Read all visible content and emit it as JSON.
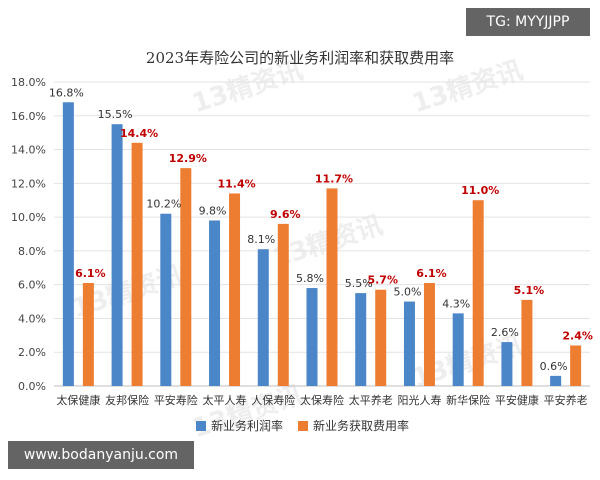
{
  "watermarks": {
    "tg": "TG: MYYJJPP",
    "site": "www.bodanyanju.com",
    "logo": "13精资讯"
  },
  "chart_data": {
    "type": "bar",
    "title": "2023年寿险公司的新业务利润率和获取费用率",
    "categories": [
      "太保健康",
      "友邦保险",
      "平安寿险",
      "太平人寿",
      "人保寿险",
      "太保寿险",
      "太平养老",
      "阳光人寿",
      "新华保险",
      "平安健康",
      "平安养老"
    ],
    "series": [
      {
        "name": "新业务利润率",
        "values": [
          16.8,
          15.5,
          10.2,
          9.8,
          8.1,
          5.8,
          5.5,
          5.0,
          4.3,
          2.6,
          0.6
        ],
        "labels": [
          "16.8%",
          "15.5%",
          "10.2%",
          "9.8%",
          "8.1%",
          "5.8%",
          "5.5%",
          "5.0%",
          "4.3%",
          "2.6%",
          "0.6%"
        ],
        "color": "#4a86c8",
        "label_color": "#333333"
      },
      {
        "name": "新业务获取费用率",
        "values": [
          6.1,
          14.4,
          12.9,
          11.4,
          9.6,
          11.7,
          5.7,
          6.1,
          11.0,
          5.1,
          2.4
        ],
        "labels": [
          "6.1%",
          "14.4%",
          "12.9%",
          "11.4%",
          "9.6%",
          "11.7%",
          "5.7%",
          "6.1%",
          "11.0%",
          "5.1%",
          "2.4%"
        ],
        "color": "#ed7d31",
        "label_color": "#c00000"
      }
    ],
    "ylim": [
      0,
      18
    ],
    "yticks": [
      "0.0%",
      "2.0%",
      "4.0%",
      "6.0%",
      "8.0%",
      "10.0%",
      "12.0%",
      "14.0%",
      "16.0%",
      "18.0%"
    ],
    "grid": true,
    "legend": "bottom"
  }
}
